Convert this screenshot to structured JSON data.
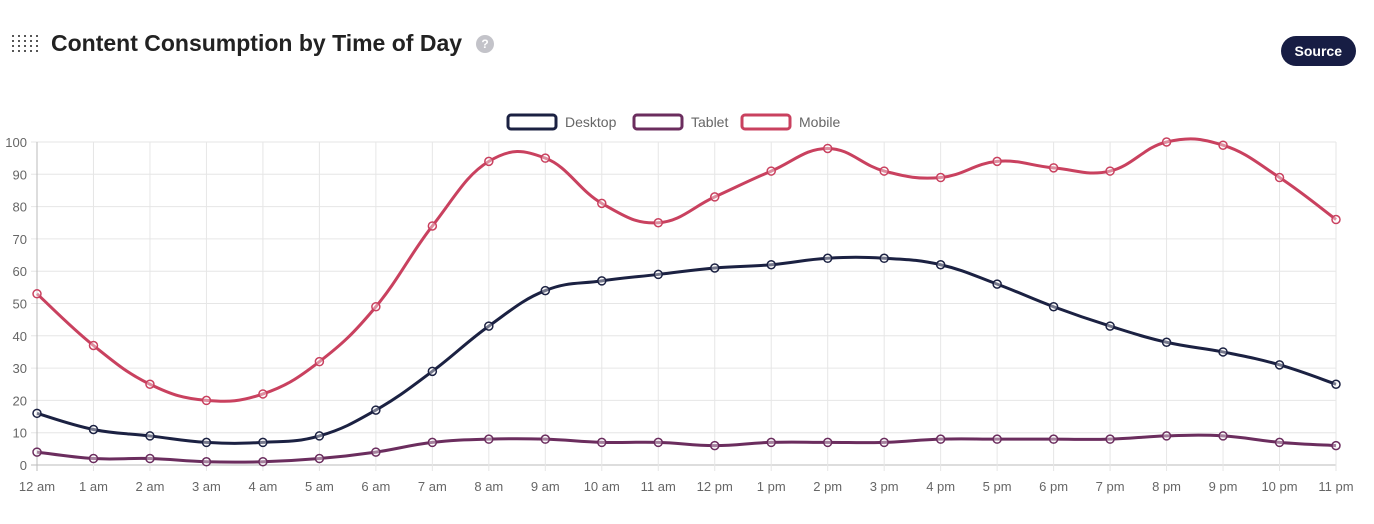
{
  "header": {
    "title": "Content Consumption by Time of Day",
    "help_icon": "?",
    "source_label": "Source"
  },
  "chart_data": {
    "type": "line",
    "title": "Content Consumption by Time of Day",
    "xlabel": "",
    "ylabel": "",
    "ylim": [
      0,
      100
    ],
    "yticks": [
      0,
      10,
      20,
      30,
      40,
      50,
      60,
      70,
      80,
      90,
      100
    ],
    "categories": [
      "12 am",
      "1 am",
      "2 am",
      "3 am",
      "4 am",
      "5 am",
      "6 am",
      "7 am",
      "8 am",
      "9 am",
      "10 am",
      "11 am",
      "12 pm",
      "1 pm",
      "2 pm",
      "3 pm",
      "4 pm",
      "5 pm",
      "6 pm",
      "7 pm",
      "8 pm",
      "9 pm",
      "10 pm",
      "11 pm"
    ],
    "legend": "top",
    "grid": true,
    "series": [
      {
        "name": "Desktop",
        "color": "#1b2142",
        "values": [
          16,
          11,
          9,
          7,
          7,
          9,
          17,
          29,
          43,
          54,
          57,
          59,
          61,
          62,
          64,
          64,
          62,
          56,
          49,
          43,
          38,
          35,
          31,
          25
        ]
      },
      {
        "name": "Tablet",
        "color": "#6b2d5e",
        "values": [
          4,
          2,
          2,
          1,
          1,
          2,
          4,
          7,
          8,
          8,
          7,
          7,
          6,
          7,
          7,
          7,
          8,
          8,
          8,
          8,
          9,
          9,
          7,
          6
        ]
      },
      {
        "name": "Mobile",
        "color": "#c9415f",
        "values": [
          53,
          37,
          25,
          20,
          22,
          32,
          49,
          74,
          94,
          95,
          81,
          75,
          83,
          91,
          98,
          91,
          89,
          94,
          92,
          91,
          100,
          99,
          89,
          76
        ]
      }
    ]
  }
}
